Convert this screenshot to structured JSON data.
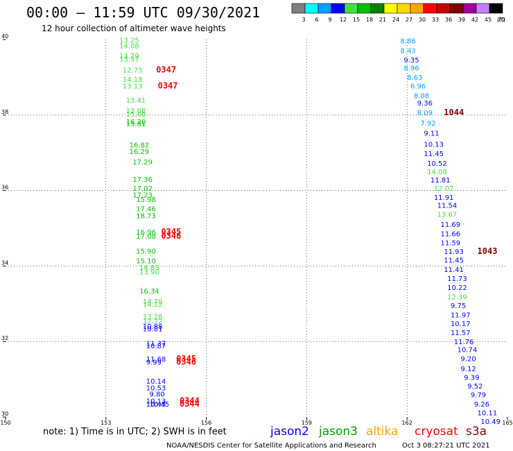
{
  "header": {
    "title": "00:00 – 11:59 UTC 09/30/2021",
    "subtitle": "12 hour collection of altimeter wave heights"
  },
  "colorbar": {
    "bins": [
      {
        "label": "3",
        "color": "#808080"
      },
      {
        "label": "6",
        "color": "#00ffff"
      },
      {
        "label": "9",
        "color": "#00a0ff"
      },
      {
        "label": "12",
        "color": "#0000ff"
      },
      {
        "label": "15",
        "color": "#40e040"
      },
      {
        "label": "18",
        "color": "#00c000"
      },
      {
        "label": "21",
        "color": "#008000"
      },
      {
        "label": "24",
        "color": "#ffff00"
      },
      {
        "label": "27",
        "color": "#ffd700"
      },
      {
        "label": "30",
        "color": "#ffa500"
      },
      {
        "label": "33",
        "color": "#ff0000"
      },
      {
        "label": "36",
        "color": "#c80000"
      },
      {
        "label": "39",
        "color": "#800000"
      },
      {
        "label": "42",
        "color": "#a000a0"
      },
      {
        "label": "45",
        "color": "#c080ff"
      },
      {
        "label": "70",
        "color": "#000000"
      }
    ],
    "unit": "(ft)"
  },
  "chart_data": {
    "type": "scatter",
    "xlim": [
      150,
      165
    ],
    "ylim": [
      30,
      40
    ],
    "x_ticks": [
      "150",
      "153",
      "156",
      "159",
      "162",
      "165"
    ],
    "y_ticks": [
      "30",
      "32",
      "34",
      "36",
      "38",
      "40"
    ],
    "grid": true,
    "points": [
      {
        "lon": 153.4,
        "lat": 39.92,
        "label": "13.25",
        "color": "#40e040"
      },
      {
        "lon": 153.4,
        "lat": 39.77,
        "label": "14.08",
        "color": "#40e040"
      },
      {
        "lon": 153.4,
        "lat": 39.5,
        "label": "13.79",
        "color": "#40e040"
      },
      {
        "lon": 153.4,
        "lat": 39.42,
        "label": "13.97",
        "color": "#40e040"
      },
      {
        "lon": 153.5,
        "lat": 39.13,
        "label": "12.73",
        "color": "#40e040"
      },
      {
        "lon": 153.5,
        "lat": 38.88,
        "label": "14.18",
        "color": "#40e040"
      },
      {
        "lon": 153.5,
        "lat": 38.7,
        "label": "13.13",
        "color": "#40e040"
      },
      {
        "lon": 153.6,
        "lat": 38.33,
        "label": "13.41",
        "color": "#40e040"
      },
      {
        "lon": 153.6,
        "lat": 38.05,
        "label": "13.68",
        "color": "#40e040"
      },
      {
        "lon": 153.6,
        "lat": 37.96,
        "label": "15.00",
        "color": "#40e040"
      },
      {
        "lon": 153.6,
        "lat": 37.76,
        "label": "16.20",
        "color": "#00c000"
      },
      {
        "lon": 153.6,
        "lat": 37.7,
        "label": "15.81",
        "color": "#00c000"
      },
      {
        "lon": 153.7,
        "lat": 37.14,
        "label": "16.82",
        "color": "#00c000"
      },
      {
        "lon": 153.7,
        "lat": 36.97,
        "label": "16.29",
        "color": "#00c000"
      },
      {
        "lon": 153.8,
        "lat": 36.69,
        "label": "17.29",
        "color": "#00c000"
      },
      {
        "lon": 153.8,
        "lat": 36.23,
        "label": "17.36",
        "color": "#00c000"
      },
      {
        "lon": 153.8,
        "lat": 35.99,
        "label": "17.02",
        "color": "#00c000"
      },
      {
        "lon": 153.8,
        "lat": 35.82,
        "label": "17.23",
        "color": "#00c000"
      },
      {
        "lon": 153.9,
        "lat": 35.7,
        "label": "15.98",
        "color": "#00c000"
      },
      {
        "lon": 153.9,
        "lat": 35.45,
        "label": "17.46",
        "color": "#00c000"
      },
      {
        "lon": 153.9,
        "lat": 35.27,
        "label": "18.73",
        "color": "#00c000"
      },
      {
        "lon": 153.9,
        "lat": 34.83,
        "label": "16.96",
        "color": "#00c000"
      },
      {
        "lon": 153.9,
        "lat": 34.72,
        "label": "17.08",
        "color": "#00c000"
      },
      {
        "lon": 153.9,
        "lat": 34.33,
        "label": "15.90",
        "color": "#00c000"
      },
      {
        "lon": 153.9,
        "lat": 34.07,
        "label": "15.10",
        "color": "#00c000"
      },
      {
        "lon": 154.0,
        "lat": 33.9,
        "label": "14.83",
        "color": "#40e040"
      },
      {
        "lon": 154.0,
        "lat": 33.78,
        "label": "13.90",
        "color": "#40e040"
      },
      {
        "lon": 154.0,
        "lat": 33.27,
        "label": "16.34",
        "color": "#00c000"
      },
      {
        "lon": 154.1,
        "lat": 33.0,
        "label": "14.70",
        "color": "#40e040"
      },
      {
        "lon": 154.1,
        "lat": 32.92,
        "label": "14.12",
        "color": "#40e040"
      },
      {
        "lon": 154.1,
        "lat": 32.59,
        "label": "13.28",
        "color": "#40e040"
      },
      {
        "lon": 154.1,
        "lat": 32.47,
        "label": "12.22",
        "color": "#40e040"
      },
      {
        "lon": 154.1,
        "lat": 32.33,
        "label": "10.88",
        "color": "#0000ff"
      },
      {
        "lon": 154.1,
        "lat": 32.27,
        "label": "10.81",
        "color": "#0000ff"
      },
      {
        "lon": 154.2,
        "lat": 31.88,
        "label": "11.37",
        "color": "#0000ff"
      },
      {
        "lon": 154.2,
        "lat": 31.82,
        "label": "10.87",
        "color": "#0000ff"
      },
      {
        "lon": 154.2,
        "lat": 31.47,
        "label": "11.68",
        "color": "#0000ff"
      },
      {
        "lon": 154.2,
        "lat": 31.39,
        "label": "9.99",
        "color": "#0000ff"
      },
      {
        "lon": 154.2,
        "lat": 30.88,
        "label": "10.14",
        "color": "#0000ff"
      },
      {
        "lon": 154.2,
        "lat": 30.71,
        "label": "10.53",
        "color": "#0000ff"
      },
      {
        "lon": 154.3,
        "lat": 30.54,
        "label": "9.80",
        "color": "#0000ff"
      },
      {
        "lon": 154.2,
        "lat": 30.36,
        "label": "10.13",
        "color": "#0000ff"
      },
      {
        "lon": 154.2,
        "lat": 30.28,
        "label": "10.45",
        "color": "#0000ff"
      },
      {
        "lon": 154.3,
        "lat": 30.28,
        "label": "10.45",
        "color": "#0000ff"
      },
      {
        "lon": 161.8,
        "lat": 39.9,
        "label": "8.86",
        "color": "#00a0ff"
      },
      {
        "lon": 161.8,
        "lat": 39.64,
        "label": "8.43",
        "color": "#00a0ff"
      },
      {
        "lon": 161.9,
        "lat": 39.39,
        "label": "9.35",
        "color": "#0000ff"
      },
      {
        "lon": 161.9,
        "lat": 39.18,
        "label": "8.96",
        "color": "#00a0ff"
      },
      {
        "lon": 162.0,
        "lat": 38.93,
        "label": "8.63",
        "color": "#00a0ff"
      },
      {
        "lon": 162.1,
        "lat": 38.7,
        "label": "6.96",
        "color": "#00a0ff"
      },
      {
        "lon": 162.2,
        "lat": 38.45,
        "label": "8.08",
        "color": "#00a0ff"
      },
      {
        "lon": 162.3,
        "lat": 38.25,
        "label": "9.36",
        "color": "#0000ff"
      },
      {
        "lon": 162.3,
        "lat": 38.0,
        "label": "8.09",
        "color": "#00a0ff"
      },
      {
        "lon": 162.4,
        "lat": 37.72,
        "label": "7.92",
        "color": "#00a0ff"
      },
      {
        "lon": 162.5,
        "lat": 37.45,
        "label": "9.11",
        "color": "#0000ff"
      },
      {
        "lon": 162.5,
        "lat": 37.16,
        "label": "10.13",
        "color": "#0000ff"
      },
      {
        "lon": 162.5,
        "lat": 36.91,
        "label": "11.45",
        "color": "#0000ff"
      },
      {
        "lon": 162.6,
        "lat": 36.65,
        "label": "10.52",
        "color": "#0000ff"
      },
      {
        "lon": 162.6,
        "lat": 36.43,
        "label": "14.08",
        "color": "#40e040"
      },
      {
        "lon": 162.7,
        "lat": 36.21,
        "label": "11.81",
        "color": "#0000ff"
      },
      {
        "lon": 162.8,
        "lat": 35.99,
        "label": "12.07",
        "color": "#40e040"
      },
      {
        "lon": 162.8,
        "lat": 35.75,
        "label": "11.91",
        "color": "#0000ff"
      },
      {
        "lon": 162.9,
        "lat": 35.54,
        "label": "11.54",
        "color": "#0000ff"
      },
      {
        "lon": 162.9,
        "lat": 35.3,
        "label": "13.67",
        "color": "#40e040"
      },
      {
        "lon": 163.0,
        "lat": 35.04,
        "label": "11.69",
        "color": "#0000ff"
      },
      {
        "lon": 163.0,
        "lat": 34.79,
        "label": "11.66",
        "color": "#0000ff"
      },
      {
        "lon": 163.0,
        "lat": 34.55,
        "label": "11.59",
        "color": "#0000ff"
      },
      {
        "lon": 163.1,
        "lat": 34.32,
        "label": "11.93",
        "color": "#0000ff"
      },
      {
        "lon": 163.1,
        "lat": 34.09,
        "label": "11.45",
        "color": "#0000ff"
      },
      {
        "lon": 163.1,
        "lat": 33.84,
        "label": "11.41",
        "color": "#0000ff"
      },
      {
        "lon": 163.2,
        "lat": 33.6,
        "label": "11.73",
        "color": "#0000ff"
      },
      {
        "lon": 163.2,
        "lat": 33.36,
        "label": "10.22",
        "color": "#0000ff"
      },
      {
        "lon": 163.2,
        "lat": 33.12,
        "label": "12.39",
        "color": "#40e040"
      },
      {
        "lon": 163.3,
        "lat": 32.89,
        "label": "9.75",
        "color": "#0000ff"
      },
      {
        "lon": 163.3,
        "lat": 32.64,
        "label": "11.97",
        "color": "#0000ff"
      },
      {
        "lon": 163.3,
        "lat": 32.41,
        "label": "10.17",
        "color": "#0000ff"
      },
      {
        "lon": 163.3,
        "lat": 32.17,
        "label": "11.57",
        "color": "#0000ff"
      },
      {
        "lon": 163.4,
        "lat": 31.93,
        "label": "11.76",
        "color": "#0000ff"
      },
      {
        "lon": 163.5,
        "lat": 31.72,
        "label": "10.74",
        "color": "#0000ff"
      },
      {
        "lon": 163.6,
        "lat": 31.48,
        "label": "9.20",
        "color": "#0000ff"
      },
      {
        "lon": 163.6,
        "lat": 31.21,
        "label": "9.12",
        "color": "#0000ff"
      },
      {
        "lon": 163.7,
        "lat": 30.98,
        "label": "9.39",
        "color": "#0000ff"
      },
      {
        "lon": 163.8,
        "lat": 30.75,
        "label": "9.52",
        "color": "#0000ff"
      },
      {
        "lon": 163.9,
        "lat": 30.52,
        "label": "9.79",
        "color": "#0000ff"
      },
      {
        "lon": 164.0,
        "lat": 30.28,
        "label": "9.26",
        "color": "#0000ff"
      },
      {
        "lon": 164.1,
        "lat": 30.05,
        "label": "10.11",
        "color": "#0000ff"
      },
      {
        "lon": 164.2,
        "lat": 29.82,
        "label": "10.49",
        "color": "#0000ff"
      }
    ],
    "pass_labels": [
      {
        "lon": 154.5,
        "lat": 39.13,
        "label": "0347",
        "color": "#ff0000"
      },
      {
        "lon": 154.55,
        "lat": 38.7,
        "label": "0347",
        "color": "#ff0000"
      },
      {
        "lon": 154.65,
        "lat": 34.83,
        "label": "0345",
        "color": "#ff0000"
      },
      {
        "lon": 154.65,
        "lat": 34.72,
        "label": "0346",
        "color": "#ff0000"
      },
      {
        "lon": 155.1,
        "lat": 31.47,
        "label": "0345",
        "color": "#ff0000"
      },
      {
        "lon": 155.1,
        "lat": 31.39,
        "label": "0346",
        "color": "#ff0000"
      },
      {
        "lon": 155.2,
        "lat": 30.36,
        "label": "0344",
        "color": "#ff0000"
      },
      {
        "lon": 155.2,
        "lat": 30.28,
        "label": "0344",
        "color": "#ff0000"
      },
      {
        "lon": 163.1,
        "lat": 38.0,
        "label": "1044",
        "color": "#800000"
      },
      {
        "lon": 164.1,
        "lat": 34.32,
        "label": "1043",
        "color": "#800000"
      }
    ]
  },
  "footer": {
    "note": "note: 1) Time is in UTC; 2) SWH is in feet",
    "satellites": [
      {
        "name": "jason2",
        "color": "#0000ff"
      },
      {
        "name": "jason3",
        "color": "#00a000"
      },
      {
        "name": "altika",
        "color": "#ffa500"
      },
      {
        "name": "cryosat",
        "color": "#ff0000"
      },
      {
        "name": "s3a",
        "color": "#800000"
      }
    ],
    "credit": "NOAA/NESDIS Center for Satellite Applications and Research",
    "timestamp": "Oct  3 08:27:21 UTC 2021"
  }
}
